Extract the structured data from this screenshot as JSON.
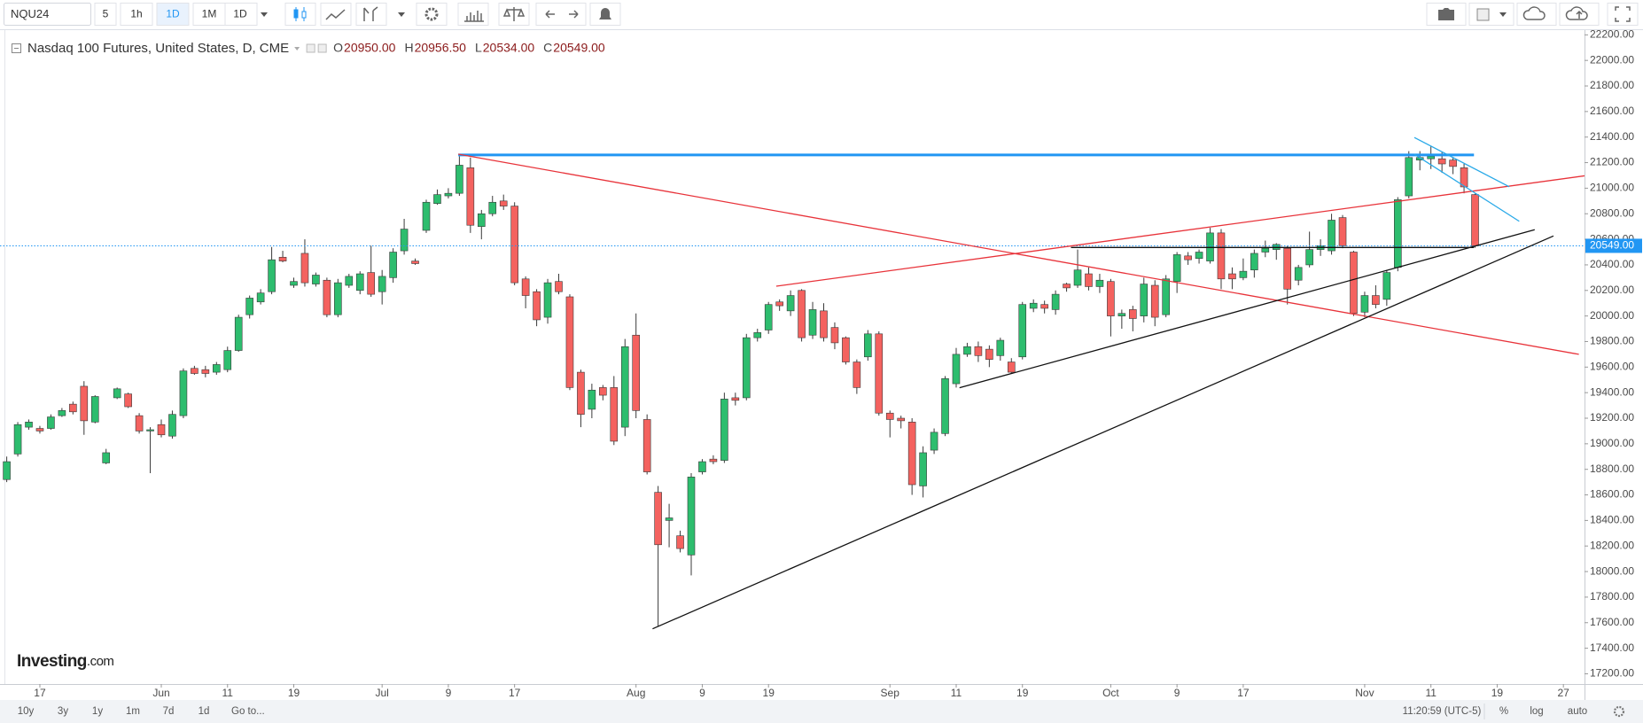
{
  "ui": {
    "toolbar": {
      "symbol": "NQU24",
      "intervals": [
        "5",
        "1h",
        "1D",
        "1M",
        "1D"
      ]
    },
    "bottom_bar": {
      "ranges": [
        "10y",
        "3y",
        "1y",
        "1m",
        "7d",
        "1d"
      ],
      "goto": "Go to...",
      "clock": "11:20:59 (UTC-5)",
      "options": [
        "%",
        "log",
        "auto"
      ]
    },
    "logo": {
      "brand": "Investing",
      "suffix": ".com"
    }
  },
  "chart_data": {
    "type": "candlestick",
    "title": "Nasdaq 100 Futures, United States, D, CME",
    "ohlc_legend": [
      {
        "key": "O",
        "text": "20950.00"
      },
      {
        "key": "H",
        "text": "20956.50"
      },
      {
        "key": "L",
        "text": "20534.00"
      },
      {
        "key": "C",
        "text": "20549.00"
      }
    ],
    "categories": [
      null,
      null,
      null,
      "17",
      null,
      null,
      null,
      null,
      null,
      null,
      null,
      null,
      null,
      null,
      "Jun",
      null,
      null,
      null,
      null,
      null,
      "11",
      null,
      null,
      null,
      null,
      null,
      "19",
      null,
      null,
      null,
      null,
      null,
      null,
      null,
      "Jul",
      null,
      null,
      null,
      null,
      null,
      "9",
      null,
      null,
      null,
      null,
      null,
      "17",
      null,
      null,
      null,
      null,
      null,
      null,
      null,
      null,
      null,
      null,
      "Aug",
      null,
      null,
      null,
      null,
      null,
      "9",
      null,
      null,
      null,
      null,
      null,
      "19",
      null,
      null,
      null,
      null,
      null,
      null,
      null,
      null,
      null,
      null,
      "Sep",
      null,
      null,
      null,
      null,
      null,
      "11",
      null,
      null,
      null,
      null,
      null,
      "19",
      null,
      null,
      null,
      null,
      null,
      null,
      null,
      "Oct",
      null,
      null,
      null,
      null,
      null,
      "9",
      null,
      null,
      null,
      null,
      null,
      "17",
      null,
      null,
      null,
      null,
      null,
      null,
      null,
      null,
      null,
      null,
      "Nov",
      null,
      null,
      null,
      null,
      null,
      "11",
      null,
      null,
      null,
      null,
      null,
      "19",
      null,
      null,
      null,
      null,
      null,
      "27",
      null
    ],
    "open": [
      18720,
      18920,
      19130,
      19120,
      19120,
      19220,
      19310,
      19450,
      19170,
      18850,
      19360,
      19390,
      19220,
      19100,
      19150,
      19060,
      19220,
      19590,
      19580,
      19560,
      19580,
      19730,
      20010,
      20110,
      20190,
      20460,
      20240,
      20490,
      20250,
      20280,
      20010,
      20240,
      20200,
      20340,
      20190,
      20300,
      20510,
      20430,
      20670,
      20880,
      20940,
      20960,
      21160,
      20700,
      20800,
      20900,
      20860,
      20290,
      20190,
      19990,
      20270,
      20150,
      19560,
      19270,
      19440,
      19440,
      19130,
      19850,
      19190,
      18620,
      18400,
      18280,
      18130,
      18780,
      18880,
      18870,
      19360,
      19360,
      19830,
      19890,
      20110,
      20040,
      20200,
      19850,
      20040,
      19910,
      19830,
      19640,
      19680,
      19860,
      19240,
      19200,
      19170,
      18670,
      18950,
      19080,
      19470,
      19700,
      19760,
      19740,
      19690,
      19640,
      19680,
      20060,
      20090,
      20050,
      20250,
      20240,
      20330,
      20230,
      20270,
      20000,
      20050,
      20000,
      20240,
      20010,
      20270,
      20470,
      20450,
      20430,
      20650,
      20330,
      20300,
      20360,
      20500,
      20520,
      20530,
      20280,
      20400,
      20520,
      20510,
      20770,
      20500,
      20030,
      20160,
      20130,
      20380,
      20940,
      21220,
      21230,
      21230,
      21220,
      21160,
      20950,
      null,
      null,
      null,
      null,
      null,
      null,
      null,
      null,
      null
    ],
    "high": [
      18900,
      19170,
      19190,
      19140,
      19230,
      19280,
      19330,
      19490,
      19380,
      18960,
      19440,
      19400,
      19240,
      19130,
      19190,
      19260,
      19590,
      19610,
      19610,
      19640,
      19760,
      20010,
      20160,
      20210,
      20540,
      20510,
      20300,
      20600,
      20340,
      20300,
      20290,
      20330,
      20350,
      20550,
      20360,
      20530,
      20760,
      20450,
      20910,
      20990,
      21000,
      21250,
      21240,
      20830,
      20940,
      20950,
      20890,
      20310,
      20210,
      20290,
      20330,
      20170,
      19580,
      19470,
      19460,
      19530,
      19820,
      20020,
      19230,
      18670,
      18530,
      18320,
      18770,
      18880,
      18910,
      19400,
      19400,
      19860,
      19900,
      20110,
      20130,
      20200,
      20210,
      20110,
      20100,
      19950,
      19840,
      19660,
      19890,
      19880,
      19260,
      19220,
      19200,
      18980,
      19120,
      19530,
      19750,
      19790,
      19800,
      19770,
      19830,
      19670,
      20110,
      20130,
      20120,
      20200,
      20260,
      20520,
      20380,
      20330,
      20290,
      20050,
      20080,
      20300,
      20280,
      20320,
      20500,
      20500,
      20520,
      20690,
      20680,
      20380,
      20450,
      20520,
      20590,
      20570,
      20550,
      20400,
      20660,
      20600,
      20800,
      20790,
      20510,
      20190,
      20240,
      20360,
      20930,
      21290,
      21290,
      21330,
      21280,
      21240,
      21190,
      20956.5,
      null,
      null,
      null,
      null,
      null,
      null,
      null,
      null,
      null
    ],
    "low": [
      18700,
      18900,
      19110,
      19080,
      19110,
      19210,
      19230,
      19070,
      19160,
      18840,
      19350,
      19280,
      19080,
      18770,
      19050,
      19040,
      19200,
      19540,
      19520,
      19540,
      19560,
      19720,
      19980,
      20090,
      20170,
      20420,
      20220,
      20230,
      20230,
      19990,
      19990,
      20220,
      20170,
      20150,
      20090,
      20260,
      20480,
      20400,
      20650,
      20870,
      20920,
      20940,
      20650,
      20600,
      20780,
      20830,
      20240,
      20060,
      19920,
      19940,
      20170,
      19420,
      19130,
      19200,
      19340,
      18990,
      19060,
      19200,
      18760,
      17570,
      18190,
      18150,
      17970,
      18760,
      18840,
      18850,
      19300,
      19340,
      19800,
      19860,
      20040,
      20000,
      19800,
      19820,
      19800,
      19740,
      19620,
      19390,
      19650,
      19220,
      19050,
      19120,
      18600,
      18580,
      18920,
      19060,
      19440,
      19680,
      19640,
      19600,
      19650,
      19550,
      19660,
      20030,
      20020,
      20010,
      20190,
      20220,
      20200,
      20180,
      19840,
      19900,
      19880,
      19950,
      19920,
      19990,
      20180,
      20400,
      20410,
      20410,
      20210,
      20210,
      20280,
      20300,
      20460,
      20440,
      20090,
      20240,
      20380,
      20470,
      20480,
      20530,
      20000,
      19990,
      20060,
      20080,
      20350,
      20920,
      21140,
      21150,
      21120,
      21110,
      20960,
      20534,
      null,
      null,
      null,
      null,
      null,
      null,
      null,
      null,
      null
    ],
    "close": [
      18860,
      19150,
      19170,
      19100,
      19210,
      19260,
      19250,
      19180,
      19370,
      18930,
      19430,
      19290,
      19100,
      19110,
      19070,
      19230,
      19570,
      19550,
      19550,
      19620,
      19730,
      19990,
      20140,
      20180,
      20440,
      20430,
      20270,
      20260,
      20320,
      20010,
      20260,
      20310,
      20330,
      20170,
      20310,
      20500,
      20680,
      20410,
      20890,
      20950,
      20960,
      21180,
      20710,
      20800,
      20890,
      20860,
      20260,
      20160,
      19970,
      20260,
      20190,
      19440,
      19230,
      19420,
      19380,
      19020,
      19760,
      19260,
      18780,
      18210,
      18420,
      18180,
      18740,
      18860,
      18860,
      19350,
      19340,
      19830,
      19870,
      20090,
      20080,
      20160,
      19830,
      20050,
      19830,
      19790,
      19640,
      19440,
      19860,
      19240,
      19190,
      19180,
      18680,
      18930,
      19090,
      19510,
      19700,
      19760,
      19690,
      19660,
      19810,
      19560,
      20090,
      20100,
      20060,
      20170,
      20220,
      20360,
      20230,
      20280,
      20000,
      20020,
      19980,
      20250,
      19990,
      20290,
      20480,
      20440,
      20500,
      20650,
      20290,
      20290,
      20350,
      20490,
      20530,
      20560,
      20210,
      20380,
      20520,
      20550,
      20750,
      20550,
      20020,
      20160,
      20090,
      20340,
      20910,
      21240,
      21240,
      21250,
      21190,
      21170,
      21010,
      20549,
      null,
      null,
      null,
      null,
      null,
      null,
      null,
      null,
      null
    ],
    "up_color": "#2dbd6e",
    "down_color": "#f4625f",
    "ylim": [
      17120,
      22230
    ],
    "yticks": [
      {
        "value": 17200,
        "label": "17200.00"
      },
      {
        "value": 17400,
        "label": "17400.00"
      },
      {
        "value": 17600,
        "label": "17600.00"
      },
      {
        "value": 17800,
        "label": "17800.00"
      },
      {
        "value": 18000,
        "label": "18000.00"
      },
      {
        "value": 18200,
        "label": "18200.00"
      },
      {
        "value": 18400,
        "label": "18400.00"
      },
      {
        "value": 18600,
        "label": "18600.00"
      },
      {
        "value": 18800,
        "label": "18800.00"
      },
      {
        "value": 19000,
        "label": "19000.00"
      },
      {
        "value": 19200,
        "label": "19200.00"
      },
      {
        "value": 19400,
        "label": "19400.00"
      },
      {
        "value": 19600,
        "label": "19600.00"
      },
      {
        "value": 19800,
        "label": "19800.00"
      },
      {
        "value": 20000,
        "label": "20000.00"
      },
      {
        "value": 20200,
        "label": "20200.00"
      },
      {
        "value": 20400,
        "label": "20400.00"
      },
      {
        "value": 20600,
        "label": "20600.00"
      },
      {
        "value": 20800,
        "label": "20800.00"
      },
      {
        "value": 21000,
        "label": "21000.00"
      },
      {
        "value": 21200,
        "label": "21200.00"
      },
      {
        "value": 21400,
        "label": "21400.00"
      },
      {
        "value": 21600,
        "label": "21600.00"
      },
      {
        "value": 21800,
        "label": "21800.00"
      },
      {
        "value": 22000,
        "label": "22000.00"
      },
      {
        "value": 22200,
        "label": "22200.00"
      }
    ],
    "grid": false,
    "last_price": {
      "value": 20549,
      "label": "20549.00",
      "color": "#2196f3"
    },
    "trendlines": [
      {
        "color": "#2196f3",
        "points": [
          [
            40.9,
            21260
          ],
          [
            132.9,
            21260
          ]
        ]
      },
      {
        "color": "#e8333a",
        "points": [
          [
            40.9,
            21266
          ],
          [
            142.4,
            19700
          ]
        ]
      },
      {
        "color": "#e8333a",
        "points": [
          [
            69.7,
            20233
          ],
          [
            148.2,
            21159
          ]
        ]
      },
      {
        "color": "#111111",
        "points": [
          [
            58.5,
            17552
          ],
          [
            140.1,
            20626
          ]
        ]
      },
      {
        "color": "#111111",
        "points": [
          [
            86.3,
            19438
          ],
          [
            138.4,
            20675
          ]
        ]
      },
      {
        "color": "#111111",
        "points": [
          [
            96.4,
            20536
          ],
          [
            132.9,
            20536
          ]
        ]
      },
      {
        "color": "#29a9e8",
        "points": [
          [
            127.5,
            21397
          ],
          [
            136.1,
            21011
          ]
        ]
      },
      {
        "color": "#29a9e8",
        "points": [
          [
            127.5,
            21266
          ],
          [
            137.0,
            20741
          ]
        ]
      }
    ]
  }
}
